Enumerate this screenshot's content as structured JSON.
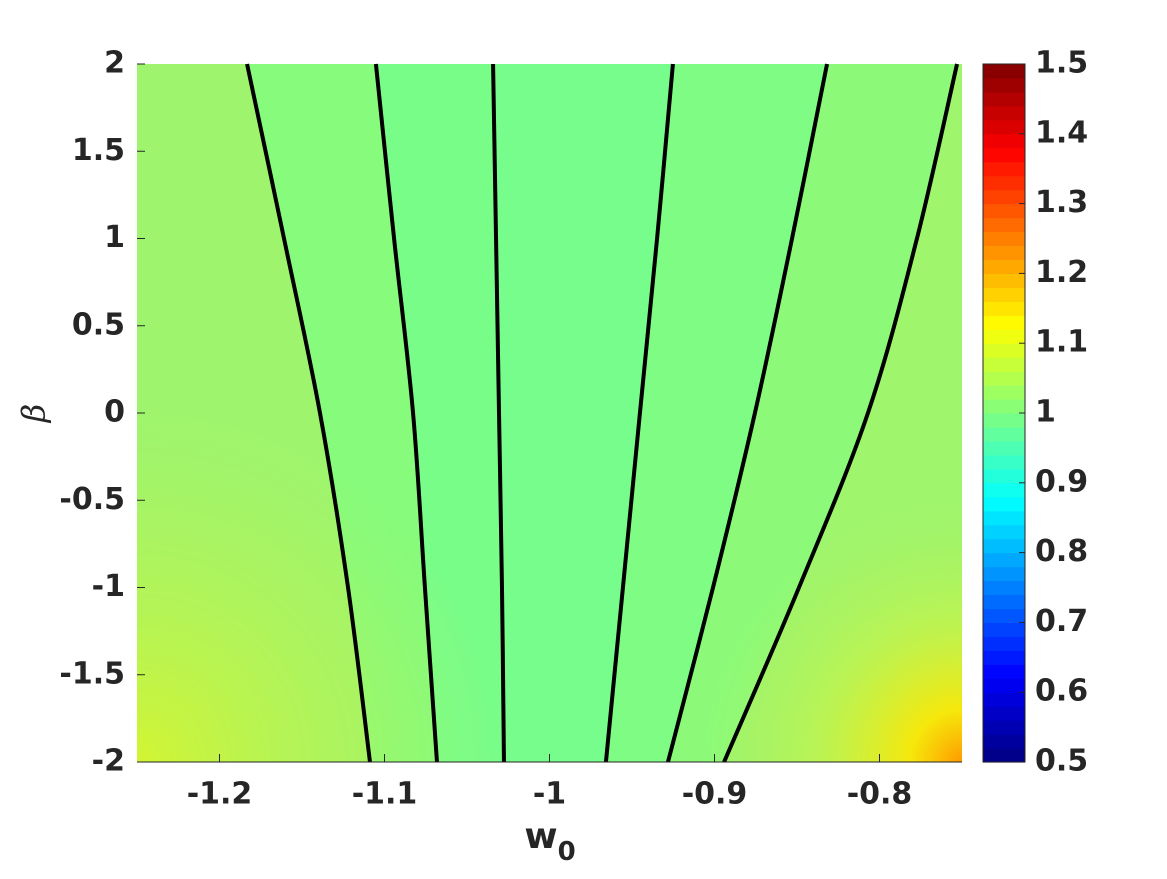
{
  "chart_data": {
    "type": "contour",
    "xlabel": "w",
    "xlabel_subscript": "0",
    "ylabel": "β",
    "xlim": [
      -1.25,
      -0.75
    ],
    "ylim": [
      -2,
      2
    ],
    "xticks": [
      -1.2,
      -1.1,
      -1,
      -0.9,
      -0.8
    ],
    "yticks": [
      -2,
      -1.5,
      -1,
      -0.5,
      0,
      0.5,
      1,
      1.5,
      2
    ],
    "line_color": "#000000",
    "lines": [
      {
        "x": [
          -1.1833,
          -1.1609,
          -1.1391,
          -1.1221,
          -1.1088
        ],
        "y": [
          2,
          1,
          0,
          -1,
          -2
        ]
      },
      {
        "x": [
          -1.1052,
          -1.0942,
          -1.0827,
          -1.0755,
          -1.0682
        ],
        "y": [
          2,
          1,
          0,
          -1,
          -2
        ]
      },
      {
        "x": [
          -1.0342,
          -1.0324,
          -1.0306,
          -1.0288,
          -1.0276
        ],
        "y": [
          2,
          1,
          0,
          -1,
          -2
        ]
      },
      {
        "x": [
          -0.9252,
          -0.9348,
          -0.9452,
          -0.9555,
          -0.9658
        ],
        "y": [
          2,
          1,
          0,
          -1,
          -2
        ]
      },
      {
        "x": [
          -0.8318,
          -0.853,
          -0.8755,
          -0.9009,
          -0.9282
        ],
        "y": [
          2,
          1,
          0,
          -1,
          -2
        ]
      },
      {
        "x": [
          -0.753,
          -0.7773,
          -0.807,
          -0.8488,
          -0.8942
        ],
        "y": [
          2,
          1,
          0,
          -1,
          -2
        ]
      }
    ],
    "region_colors": [
      "#9ef56d",
      "#86fb7c",
      "#79fd89",
      "#77fd8b",
      "#7ffc84",
      "#8cfa78",
      "#9ff56c"
    ],
    "colormap": "jet",
    "clim": [
      0.5,
      1.5
    ],
    "cticks": [
      0.5,
      0.6,
      0.7,
      0.8,
      0.9,
      1,
      1.1,
      1.2,
      1.3,
      1.4,
      1.5
    ]
  }
}
